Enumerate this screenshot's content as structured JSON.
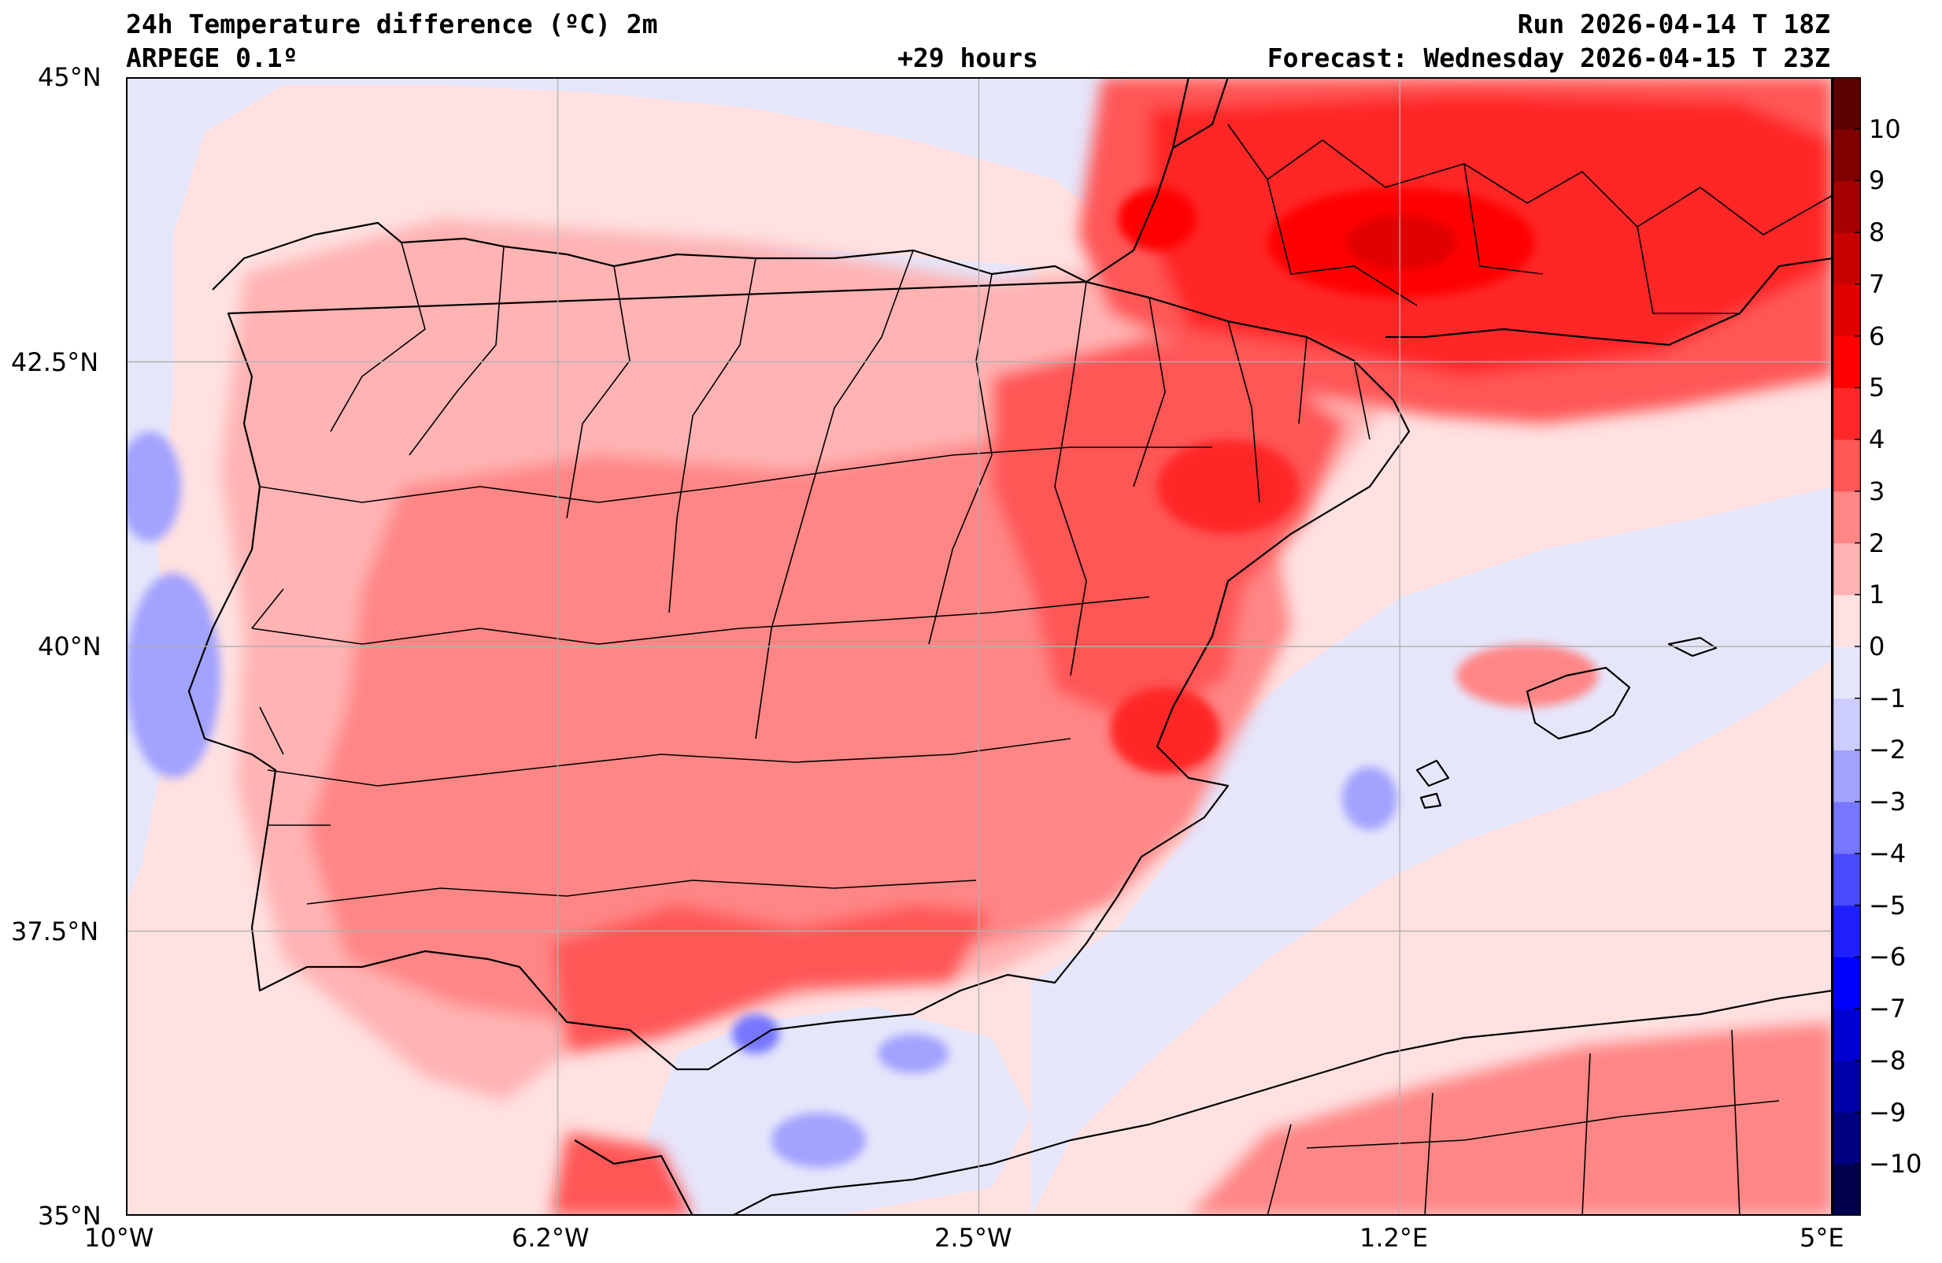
{
  "header": {
    "title": "24h Temperature difference (ºC) 2m",
    "model": "ARPEGE 0.1º",
    "lead": "+29 hours",
    "run": "Run 2026-04-14 T 18Z",
    "forecast": "Forecast: Wednesday 2026-04-15 T 23Z"
  },
  "map": {
    "lon_range": [
      -10,
      5
    ],
    "lat_range": [
      35,
      45
    ],
    "x_ticks": [
      {
        "value": -10,
        "label": "10°W"
      },
      {
        "value": -6.2,
        "label": "6.2°W"
      },
      {
        "value": -2.5,
        "label": "2.5°W"
      },
      {
        "value": 1.2,
        "label": "1.2°E"
      },
      {
        "value": 5,
        "label": "5°E"
      }
    ],
    "y_ticks": [
      {
        "value": 45,
        "label": "45°N"
      },
      {
        "value": 42.5,
        "label": "42.5°N"
      },
      {
        "value": 40,
        "label": "40°N"
      },
      {
        "value": 37.5,
        "label": "37.5°N"
      },
      {
        "value": 35,
        "label": "35°N"
      }
    ]
  },
  "colorbar": {
    "levels": [
      -11,
      -10,
      -9,
      -8,
      -7,
      -6,
      -5,
      -4,
      -3,
      -2,
      -1,
      0,
      1,
      2,
      3,
      4,
      5,
      6,
      7,
      8,
      9,
      10,
      11
    ],
    "labels": [
      "−10",
      "−9",
      "−8",
      "−7",
      "−6",
      "−5",
      "−4",
      "−3",
      "−2",
      "−1",
      "0",
      "1",
      "2",
      "3",
      "4",
      "5",
      "6",
      "7",
      "8",
      "9",
      "10"
    ],
    "label_values": [
      -10,
      -9,
      -8,
      -7,
      -6,
      -5,
      -4,
      -3,
      -2,
      -1,
      0,
      1,
      2,
      3,
      4,
      5,
      6,
      7,
      8,
      9,
      10
    ],
    "colors": [
      "#00004d",
      "#000080",
      "#0000aa",
      "#0000d4",
      "#0000ff",
      "#2020ff",
      "#4a4aff",
      "#7676ff",
      "#a2a2ff",
      "#cdcdff",
      "#e6e6fb",
      "#ffe1e1",
      "#ffb3b3",
      "#ff8686",
      "#ff5656",
      "#ff2828",
      "#ff0000",
      "#e00000",
      "#c80000",
      "#a40000",
      "#800000",
      "#5c0000"
    ]
  },
  "colors": {
    "base_warm": "#ffe1e1",
    "base_cool": "#e6e6fb",
    "border": "#000000",
    "grid": "#b0b0b0"
  }
}
